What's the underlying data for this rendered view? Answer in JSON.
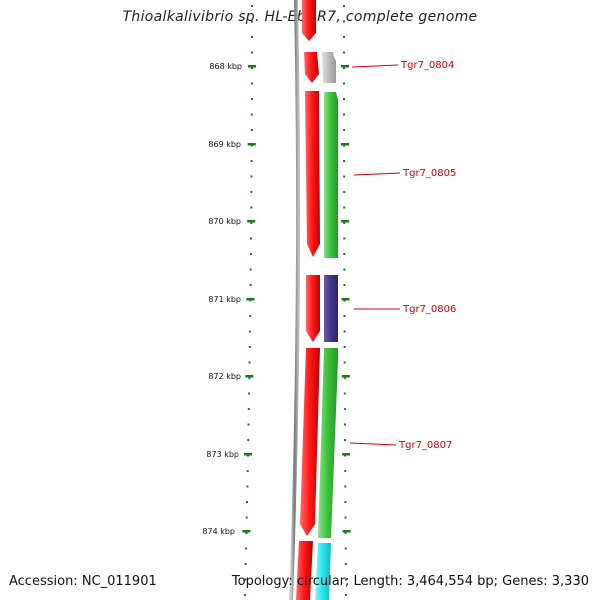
{
  "title": "Thioalkalivibrio sp. HL-EbGR7, complete genome",
  "footer": {
    "accession": "Accession: NC_011901",
    "summary": "Topology: circular; Length: 3,464,554 bp; Genes: 3,330"
  },
  "scale": {
    "unit": "kbp",
    "ticks": [
      "868 kbp",
      "869 kbp",
      "870 kbp",
      "871 kbp",
      "872 kbp",
      "873 kbp",
      "874 kbp"
    ]
  },
  "genes": [
    {
      "name": "Tgr7_0804",
      "color": "#bbbbbb"
    },
    {
      "name": "Tgr7_0805",
      "color": "#33bb33"
    },
    {
      "name": "Tgr7_0806",
      "color": "#443388"
    },
    {
      "name": "Tgr7_0807",
      "color": "#33bb33"
    }
  ],
  "colors": {
    "forward_cds": "#ff1a1a",
    "backbone": "#888888",
    "tick": "#1a7a1a",
    "label": "#d40000",
    "partial_bottom_gene": "#22e5ee"
  }
}
